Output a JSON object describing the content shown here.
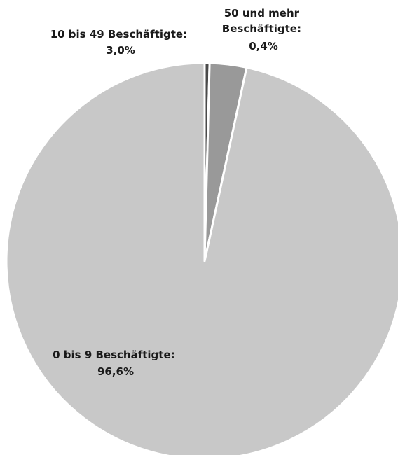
{
  "chart_data": {
    "type": "pie",
    "title": "",
    "slices": [
      {
        "label": "50 und mehr Beschäftigte",
        "value": 0.4,
        "value_label": "0,4%",
        "color": "#4a4a4a"
      },
      {
        "label": "10 bis 49 Beschäftigte",
        "value": 3.0,
        "value_label": "3,0%",
        "color": "#999999"
      },
      {
        "label": "0 bis 9 Beschäftigte",
        "value": 96.6,
        "value_label": "96,6%",
        "color": "#c8c8c8"
      }
    ],
    "slice_border_color": "#ffffff",
    "legend": "none"
  }
}
